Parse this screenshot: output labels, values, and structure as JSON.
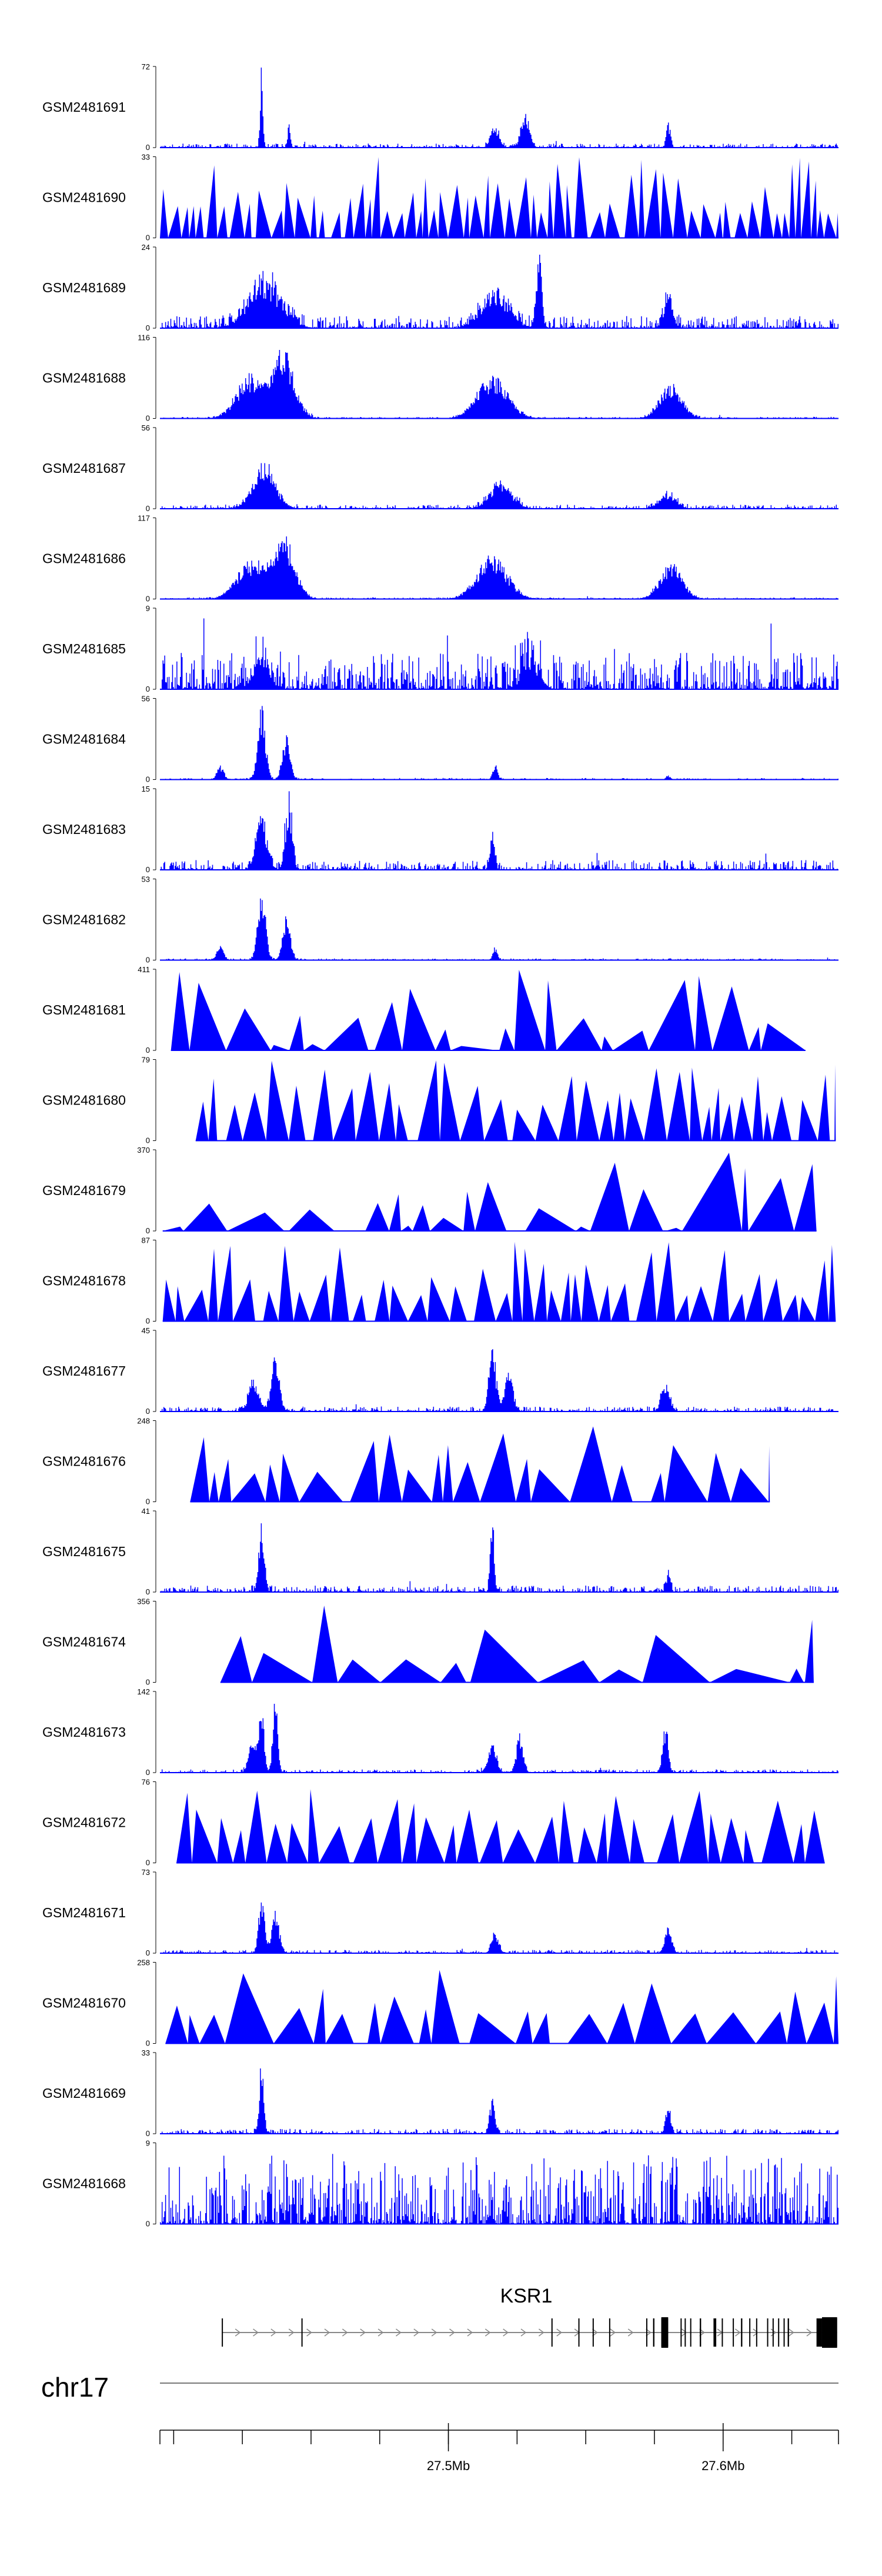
{
  "colors": {
    "signal": "#0000ff",
    "axis": "#000000",
    "gene": "#000000",
    "ideogram": "#777777"
  },
  "chart_data": {
    "type": "area",
    "genomic_range": {
      "chrom": "chr17",
      "start": 27395000,
      "end": 27642000
    },
    "tracks": [
      {
        "name": "GSM2481691",
        "ymin": 0,
        "ymax": 72,
        "style": "peaks",
        "seed": 11,
        "noise": 0.05,
        "peaks": [
          [
            27432000,
            1.0,
            500
          ],
          [
            27442000,
            0.3,
            500
          ],
          [
            27517000,
            0.28,
            1500
          ],
          [
            27528000,
            0.42,
            1500
          ],
          [
            27580000,
            0.33,
            700
          ]
        ]
      },
      {
        "name": "GSM2481690",
        "ymin": 0,
        "ymax": 33,
        "style": "triangles",
        "seed": 23,
        "minW": 2000,
        "maxW": 6000,
        "start": 27395000,
        "end": 27642000,
        "hmin": 0.3,
        "hmax": 1.0
      },
      {
        "name": "GSM2481689",
        "ymin": 0,
        "ymax": 24,
        "style": "peaks",
        "seed": 37,
        "noise": 0.15,
        "peaks": [
          [
            27433000,
            0.6,
            6000
          ],
          [
            27517000,
            0.45,
            5000
          ],
          [
            27533000,
            0.9,
            1000
          ],
          [
            27580000,
            0.45,
            1500
          ]
        ]
      },
      {
        "name": "GSM2481688",
        "ymin": 0,
        "ymax": 116,
        "style": "peaks",
        "seed": 41,
        "noise": 0.02,
        "peaks": [
          [
            27428000,
            0.55,
            5000
          ],
          [
            27440000,
            0.85,
            4000
          ],
          [
            27516000,
            0.55,
            5500
          ],
          [
            27581000,
            0.45,
            4000
          ]
        ]
      },
      {
        "name": "GSM2481687",
        "ymin": 0,
        "ymax": 56,
        "style": "peaks",
        "seed": 53,
        "noise": 0.05,
        "peaks": [
          [
            27433000,
            0.6,
            4000
          ],
          [
            27519000,
            0.35,
            4000
          ],
          [
            27580000,
            0.2,
            3000
          ]
        ]
      },
      {
        "name": "GSM2481686",
        "ymin": 0,
        "ymax": 117,
        "style": "peaks",
        "seed": 61,
        "noise": 0.02,
        "peaks": [
          [
            27428000,
            0.5,
            5000
          ],
          [
            27440000,
            0.8,
            4000
          ],
          [
            27516000,
            0.55,
            5500
          ],
          [
            27581000,
            0.45,
            4000
          ]
        ]
      },
      {
        "name": "GSM2481685",
        "ymin": 0,
        "ymax": 9,
        "style": "peaks",
        "seed": 73,
        "noise": 0.45,
        "peaks": [
          [
            27432000,
            0.4,
            3000
          ],
          [
            27530000,
            0.4,
            3000
          ]
        ]
      },
      {
        "name": "GSM2481684",
        "ymin": 0,
        "ymax": 56,
        "style": "peaks",
        "seed": 79,
        "noise": 0.02,
        "peaks": [
          [
            27417000,
            0.18,
            1200
          ],
          [
            27432000,
            0.95,
            1400
          ],
          [
            27441000,
            0.55,
            1400
          ],
          [
            27517000,
            0.2,
            800
          ],
          [
            27580000,
            0.05,
            800
          ]
        ]
      },
      {
        "name": "GSM2481683",
        "ymin": 0,
        "ymax": 15,
        "style": "peaks",
        "seed": 83,
        "noise": 0.12,
        "peaks": [
          [
            27432000,
            0.7,
            2000
          ],
          [
            27442000,
            0.9,
            1200
          ],
          [
            27516000,
            0.5,
            800
          ]
        ]
      },
      {
        "name": "GSM2481682",
        "ymin": 0,
        "ymax": 53,
        "style": "peaks",
        "seed": 97,
        "noise": 0.02,
        "peaks": [
          [
            27417000,
            0.2,
            1200
          ],
          [
            27432000,
            0.95,
            1400
          ],
          [
            27441000,
            0.55,
            1400
          ],
          [
            27517000,
            0.18,
            800
          ]
        ]
      },
      {
        "name": "GSM2481681",
        "ymin": 0,
        "ymax": 411,
        "style": "triangles",
        "seed": 101,
        "minW": 2500,
        "maxW": 18000,
        "start": 27399000,
        "end": 27630000,
        "hmin": 0.05,
        "hmax": 1.0
      },
      {
        "name": "GSM2481680",
        "ymin": 0,
        "ymax": 79,
        "style": "triangles",
        "seed": 103,
        "minW": 3000,
        "maxW": 9000,
        "start": 27408000,
        "end": 27641000,
        "hmin": 0.35,
        "hmax": 1.0
      },
      {
        "name": "GSM2481679",
        "ymin": 0,
        "ymax": 370,
        "style": "triangles",
        "seed": 107,
        "minW": 2000,
        "maxW": 22000,
        "start": 27396000,
        "end": 27634000,
        "hmin": 0.03,
        "hmax": 1.0
      },
      {
        "name": "GSM2481678",
        "ymin": 0,
        "ymax": 87,
        "style": "triangles",
        "seed": 109,
        "minW": 3000,
        "maxW": 9000,
        "start": 27396000,
        "end": 27641000,
        "hmin": 0.3,
        "hmax": 1.0
      },
      {
        "name": "GSM2481677",
        "ymin": 0,
        "ymax": 45,
        "style": "peaks",
        "seed": 113,
        "noise": 0.06,
        "peaks": [
          [
            27429000,
            0.4,
            1800
          ],
          [
            27437000,
            0.7,
            1500
          ],
          [
            27516000,
            0.95,
            1200
          ],
          [
            27522000,
            0.5,
            1500
          ],
          [
            27579000,
            0.35,
            1500
          ]
        ]
      },
      {
        "name": "GSM2481676",
        "ymin": 0,
        "ymax": 248,
        "style": "triangles",
        "seed": 127,
        "minW": 3000,
        "maxW": 17000,
        "start": 27406000,
        "end": 27617000,
        "hmin": 0.35,
        "hmax": 1.0
      },
      {
        "name": "GSM2481675",
        "ymin": 0,
        "ymax": 41,
        "style": "peaks",
        "seed": 131,
        "noise": 0.08,
        "peaks": [
          [
            27432000,
            0.9,
            1000
          ],
          [
            27516000,
            1.0,
            700
          ],
          [
            27580000,
            0.25,
            800
          ]
        ]
      },
      {
        "name": "GSM2481674",
        "ymin": 0,
        "ymax": 356,
        "style": "triangles",
        "seed": 137,
        "minW": 4000,
        "maxW": 30000,
        "start": 27417000,
        "end": 27633000,
        "hmin": 0.15,
        "hmax": 1.0
      },
      {
        "name": "GSM2481673",
        "ymin": 0,
        "ymax": 142,
        "style": "peaks",
        "seed": 139,
        "noise": 0.04,
        "peaks": [
          [
            27429000,
            0.5,
            1500
          ],
          [
            27432000,
            0.85,
            900
          ],
          [
            27437000,
            0.95,
            900
          ],
          [
            27516000,
            0.35,
            1500
          ],
          [
            27526000,
            0.5,
            1200
          ],
          [
            27579000,
            0.65,
            1000
          ]
        ]
      },
      {
        "name": "GSM2481672",
        "ymin": 0,
        "ymax": 76,
        "style": "triangles",
        "seed": 149,
        "minW": 3000,
        "maxW": 12000,
        "start": 27401000,
        "end": 27637000,
        "hmin": 0.4,
        "hmax": 1.0
      },
      {
        "name": "GSM2481671",
        "ymin": 0,
        "ymax": 73,
        "style": "peaks",
        "seed": 151,
        "noise": 0.04,
        "peaks": [
          [
            27432000,
            0.8,
            1000
          ],
          [
            27437000,
            0.55,
            1400
          ],
          [
            27517000,
            0.3,
            1200
          ],
          [
            27580000,
            0.35,
            1200
          ]
        ]
      },
      {
        "name": "GSM2481670",
        "ymin": 0,
        "ymax": 258,
        "style": "triangles",
        "seed": 157,
        "minW": 4000,
        "maxW": 18000,
        "start": 27397000,
        "end": 27642000,
        "hmin": 0.35,
        "hmax": 1.0
      },
      {
        "name": "GSM2481669",
        "ymin": 0,
        "ymax": 33,
        "style": "peaks",
        "seed": 163,
        "noise": 0.06,
        "peaks": [
          [
            27432000,
            0.95,
            800
          ],
          [
            27516000,
            0.45,
            900
          ],
          [
            27580000,
            0.35,
            900
          ]
        ]
      },
      {
        "name": "GSM2481668",
        "ymin": 0,
        "ymax": 9,
        "style": "peaks",
        "seed": 167,
        "noise": 0.85,
        "peaks": []
      }
    ],
    "gene": {
      "name": "KSR1",
      "strand": "+",
      "start": 27417500,
      "end": 27641500,
      "exons": [
        [
          27417500,
          27417900
        ],
        [
          27446500,
          27446900
        ],
        [
          27537500,
          27537900
        ],
        [
          27547300,
          27547600
        ],
        [
          27552500,
          27552800
        ],
        [
          27558500,
          27558800
        ],
        [
          27572000,
          27572300
        ],
        [
          27574500,
          27575000
        ],
        [
          27577500,
          27580000
        ],
        [
          27584500,
          27584800
        ],
        [
          27586000,
          27586400
        ],
        [
          27588000,
          27588400
        ],
        [
          27591500,
          27592000
        ],
        [
          27596500,
          27597500
        ],
        [
          27599500,
          27599900
        ],
        [
          27603500,
          27603800
        ],
        [
          27606500,
          27607000
        ],
        [
          27609500,
          27609900
        ],
        [
          27612000,
          27612400
        ],
        [
          27616000,
          27616400
        ],
        [
          27618000,
          27618400
        ],
        [
          27620000,
          27620400
        ],
        [
          27622000,
          27622400
        ],
        [
          27623500,
          27624000
        ],
        [
          27634000,
          27636000
        ],
        [
          27636000,
          27641500
        ]
      ],
      "thick_exons": [
        [
          27577500,
          27580000
        ],
        [
          27636000,
          27641500
        ]
      ]
    },
    "chromosome": "chr17",
    "axis": {
      "minor_ticks": [
        27400000,
        27425000,
        27450000,
        27475000,
        27500000,
        27525000,
        27550000,
        27575000,
        27600000,
        27625000
      ],
      "major_ticks": [
        {
          "pos": 27500000,
          "label": "27.5Mb"
        },
        {
          "pos": 27600000,
          "label": "27.6Mb"
        }
      ]
    }
  }
}
